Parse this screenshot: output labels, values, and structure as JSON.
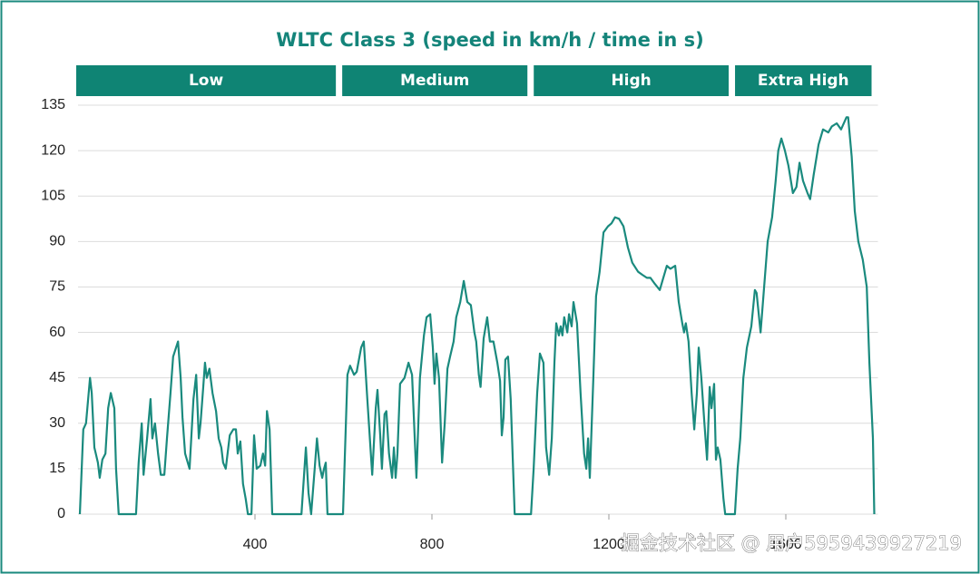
{
  "chart_data": {
    "type": "line",
    "title": "WLTC Class 3 (speed in km/h / time in s)",
    "phases": [
      {
        "label": "Low",
        "start": 0,
        "end": 589
      },
      {
        "label": "Medium",
        "start": 589,
        "end": 1022
      },
      {
        "label": "High",
        "start": 1022,
        "end": 1477
      },
      {
        "label": "Extra High",
        "start": 1477,
        "end": 1800
      }
    ],
    "xlim": [
      0,
      1800
    ],
    "xticks": [
      400,
      800,
      1200,
      1600
    ],
    "ylim": [
      0,
      135
    ],
    "yticks": [
      0,
      15,
      30,
      45,
      60,
      75,
      90,
      105,
      120,
      135
    ],
    "grid": true,
    "color": "#1a8a7e",
    "band_color": "#0f8474",
    "watermark": "掘金技术社区 @ 用户5959439927219",
    "x": [
      4,
      12,
      18,
      27,
      31,
      37,
      45,
      49,
      55,
      62,
      68,
      74,
      82,
      86,
      92,
      131,
      137,
      144,
      148,
      156,
      164,
      168,
      174,
      181,
      187,
      195,
      201,
      209,
      215,
      226,
      232,
      236,
      242,
      252,
      261,
      267,
      273,
      277,
      283,
      287,
      291,
      297,
      304,
      312,
      318,
      324,
      328,
      334,
      343,
      351,
      357,
      361,
      367,
      373,
      379,
      384,
      392,
      398,
      404,
      412,
      418,
      423,
      427,
      433,
      439,
      505,
      515,
      521,
      527,
      535,
      540,
      546,
      552,
      556,
      560,
      564,
      599,
      609,
      615,
      624,
      630,
      640,
      646,
      654,
      665,
      673,
      677,
      683,
      687,
      693,
      697,
      703,
      710,
      714,
      718,
      722,
      728,
      738,
      747,
      755,
      765,
      773,
      782,
      788,
      796,
      802,
      806,
      810,
      816,
      823,
      829,
      835,
      841,
      849,
      855,
      864,
      872,
      880,
      888,
      896,
      900,
      906,
      910,
      917,
      925,
      931,
      939,
      948,
      954,
      958,
      962,
      966,
      972,
      978,
      987,
      1024,
      1030,
      1038,
      1044,
      1052,
      1058,
      1065,
      1071,
      1077,
      1081,
      1087,
      1091,
      1095,
      1099,
      1106,
      1110,
      1116,
      1120,
      1128,
      1136,
      1144,
      1149,
      1153,
      1157,
      1165,
      1171,
      1179,
      1188,
      1198,
      1206,
      1214,
      1223,
      1233,
      1243,
      1253,
      1266,
      1276,
      1286,
      1294,
      1304,
      1315,
      1321,
      1331,
      1339,
      1350,
      1358,
      1366,
      1370,
      1374,
      1380,
      1387,
      1393,
      1399,
      1403,
      1409,
      1416,
      1422,
      1428,
      1432,
      1438,
      1442,
      1446,
      1452,
      1459,
      1463,
      1485,
      1491,
      1497,
      1504,
      1512,
      1522,
      1530,
      1534,
      1543,
      1551,
      1559,
      1569,
      1577,
      1583,
      1590,
      1598,
      1606,
      1616,
      1624,
      1631,
      1639,
      1649,
      1655,
      1663,
      1674,
      1684,
      1696,
      1704,
      1715,
      1725,
      1737,
      1741,
      1749,
      1756,
      1764,
      1774,
      1783,
      1789,
      1797,
      1800
    ],
    "values": [
      0,
      28,
      30,
      45,
      40,
      22,
      17,
      12,
      18,
      20,
      35,
      40,
      35,
      15,
      0,
      0,
      17,
      30,
      13,
      25,
      38,
      25,
      30,
      20,
      13,
      13,
      25,
      40,
      52,
      57,
      45,
      32,
      20,
      15,
      38,
      46,
      25,
      30,
      42,
      50,
      45,
      48,
      40,
      34,
      25,
      22,
      17,
      15,
      26,
      28,
      28,
      20,
      24,
      10,
      5,
      0,
      0,
      26,
      15,
      16,
      20,
      16,
      34,
      28,
      0,
      0,
      22,
      7,
      0,
      15,
      25,
      16,
      12,
      15,
      17,
      0,
      0,
      46,
      49,
      46,
      47,
      55,
      57,
      38,
      13,
      35,
      41,
      26,
      15,
      33,
      34,
      20,
      12,
      22,
      12,
      20,
      43,
      45,
      50,
      46,
      12,
      45,
      59,
      65,
      66,
      55,
      43,
      53,
      45,
      17,
      30,
      48,
      52,
      57,
      65,
      70,
      77,
      70,
      69,
      60,
      57,
      46,
      42,
      58,
      65,
      57,
      57,
      50,
      44,
      26,
      32,
      51,
      52,
      38,
      0,
      0,
      15,
      40,
      53,
      50,
      22,
      13,
      25,
      50,
      63,
      59,
      62,
      59,
      65,
      60,
      66,
      62,
      70,
      63,
      40,
      20,
      15,
      25,
      12,
      45,
      72,
      80,
      93,
      95,
      96,
      98,
      97.5,
      95,
      88,
      83,
      80,
      79,
      78,
      78,
      76,
      74,
      77,
      82,
      81,
      82,
      70,
      63,
      60,
      63,
      57,
      40,
      28,
      40,
      55,
      45,
      30,
      18,
      42,
      35,
      43,
      18,
      22,
      18,
      5,
      0,
      0,
      15,
      25,
      45,
      55,
      62,
      74,
      73,
      60,
      75,
      90,
      98,
      110,
      120,
      124,
      120,
      115,
      106,
      108,
      116,
      110,
      106,
      104,
      112,
      122,
      127,
      126,
      128,
      129,
      127,
      131,
      131,
      118,
      100,
      90,
      84,
      75,
      50,
      25,
      0
    ]
  }
}
